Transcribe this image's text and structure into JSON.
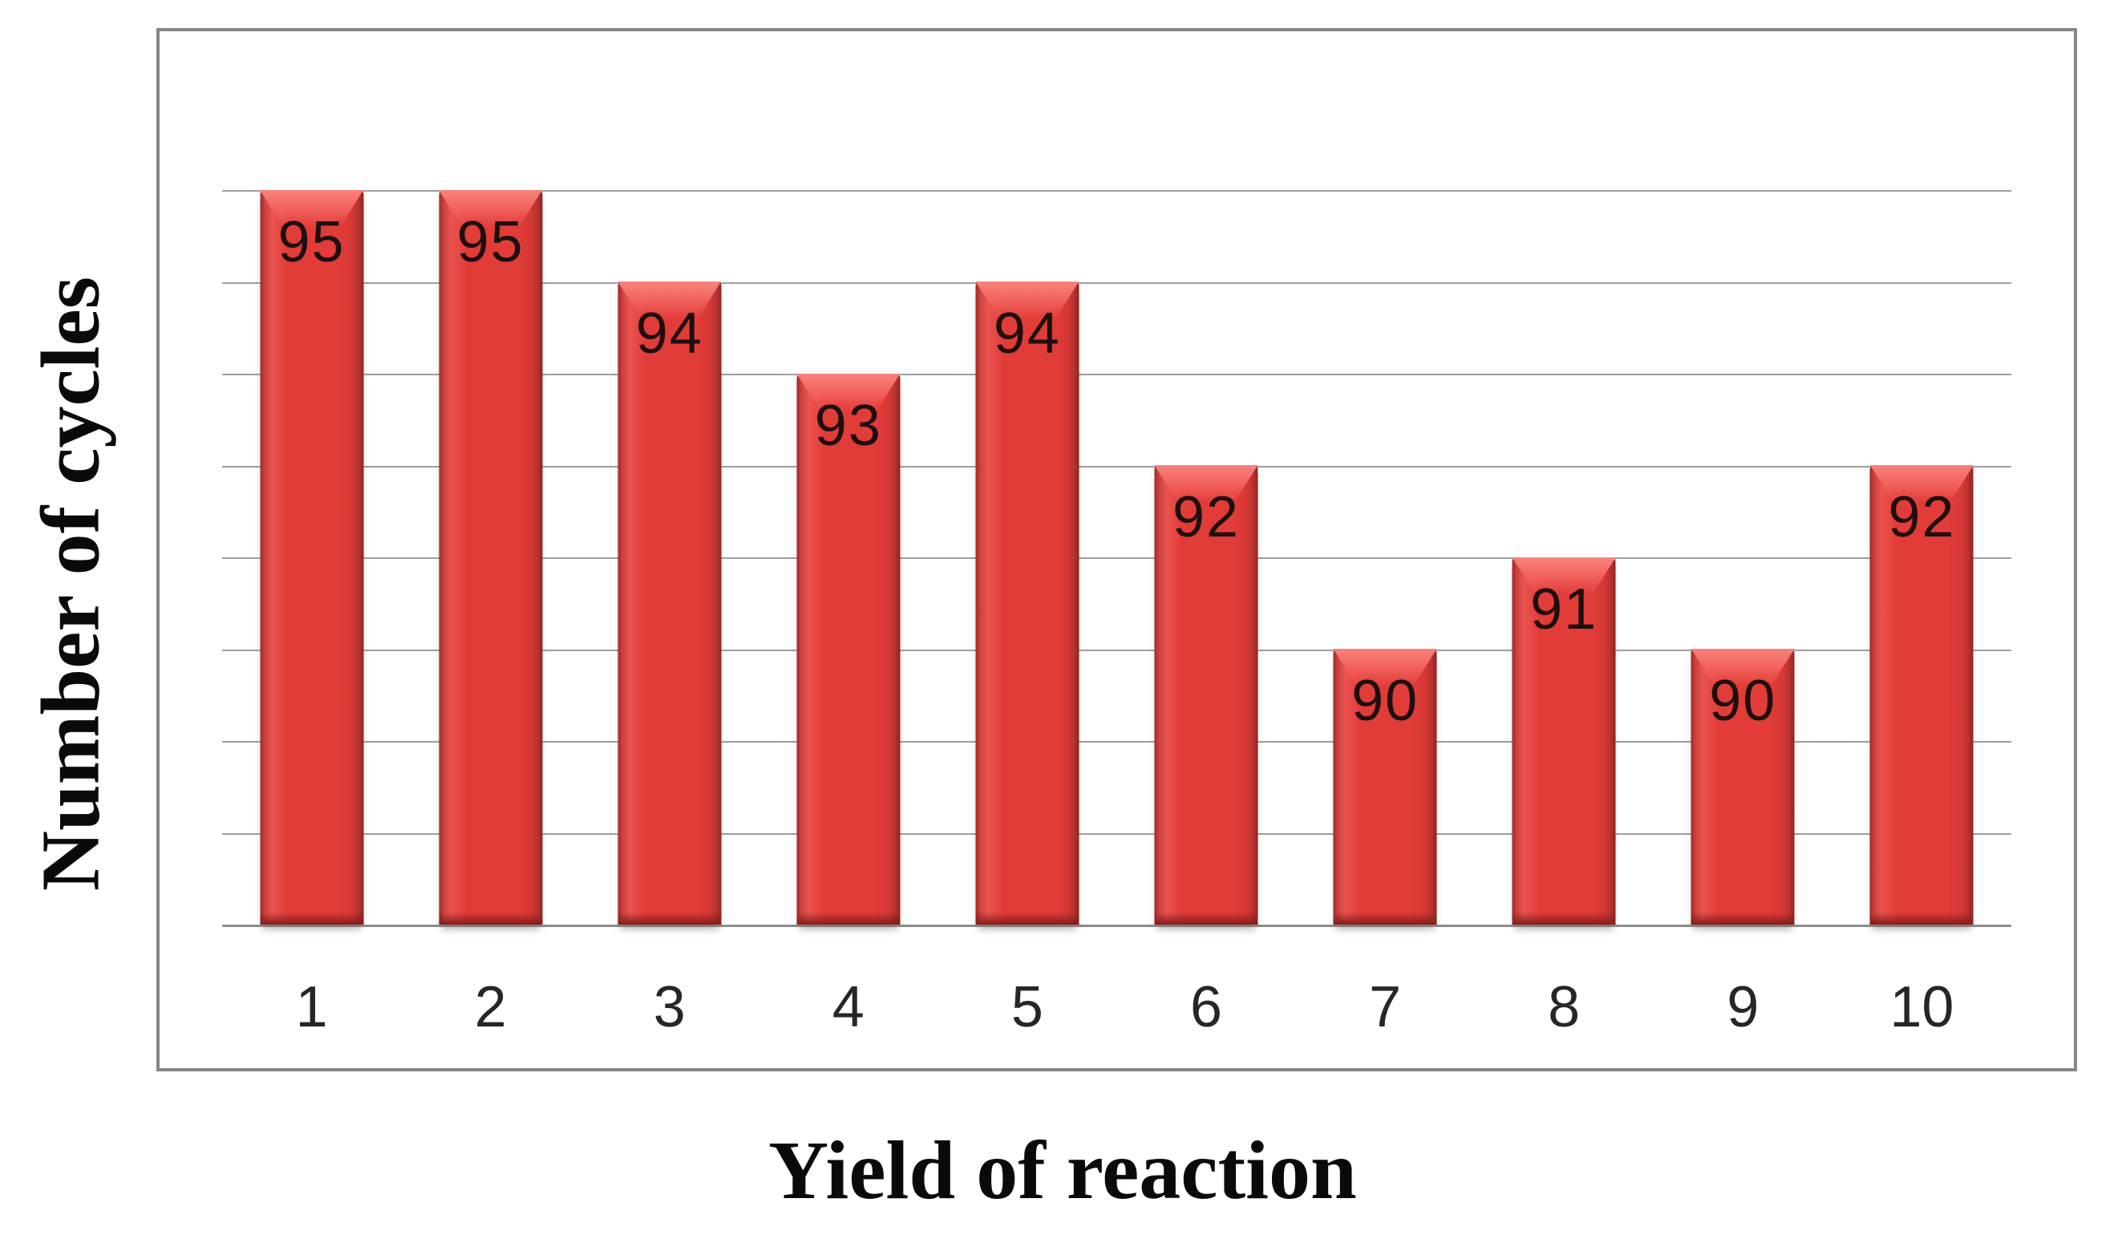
{
  "chart_data": {
    "type": "bar",
    "title": "",
    "xlabel": "Yield of reaction",
    "ylabel": "Number of cycles",
    "categories": [
      "1",
      "2",
      "3",
      "4",
      "5",
      "6",
      "7",
      "8",
      "9",
      "10"
    ],
    "values": [
      95,
      95,
      94,
      93,
      94,
      92,
      90,
      91,
      90,
      92
    ],
    "bar_value_labels": [
      "95",
      "95",
      "94",
      "93",
      "94",
      "92",
      "90",
      "91",
      "90",
      "92"
    ],
    "ylim": [
      87,
      95
    ],
    "grid_step": 1,
    "gridline_count": 9,
    "grid_on": true,
    "legend": "none",
    "y_tick_labels_shown": false,
    "colors": {
      "bar_fill": "#e23c38",
      "bar_bevel_highlight": "#f8837d",
      "bar_edge_dark": "#8e2420",
      "gridline": "#9e9e9e",
      "frame_border": "#868686",
      "label_text": "#1e0f0f",
      "tick_text": "#262626",
      "title_text": "#0a0a0a",
      "background": "#ffffff"
    }
  }
}
